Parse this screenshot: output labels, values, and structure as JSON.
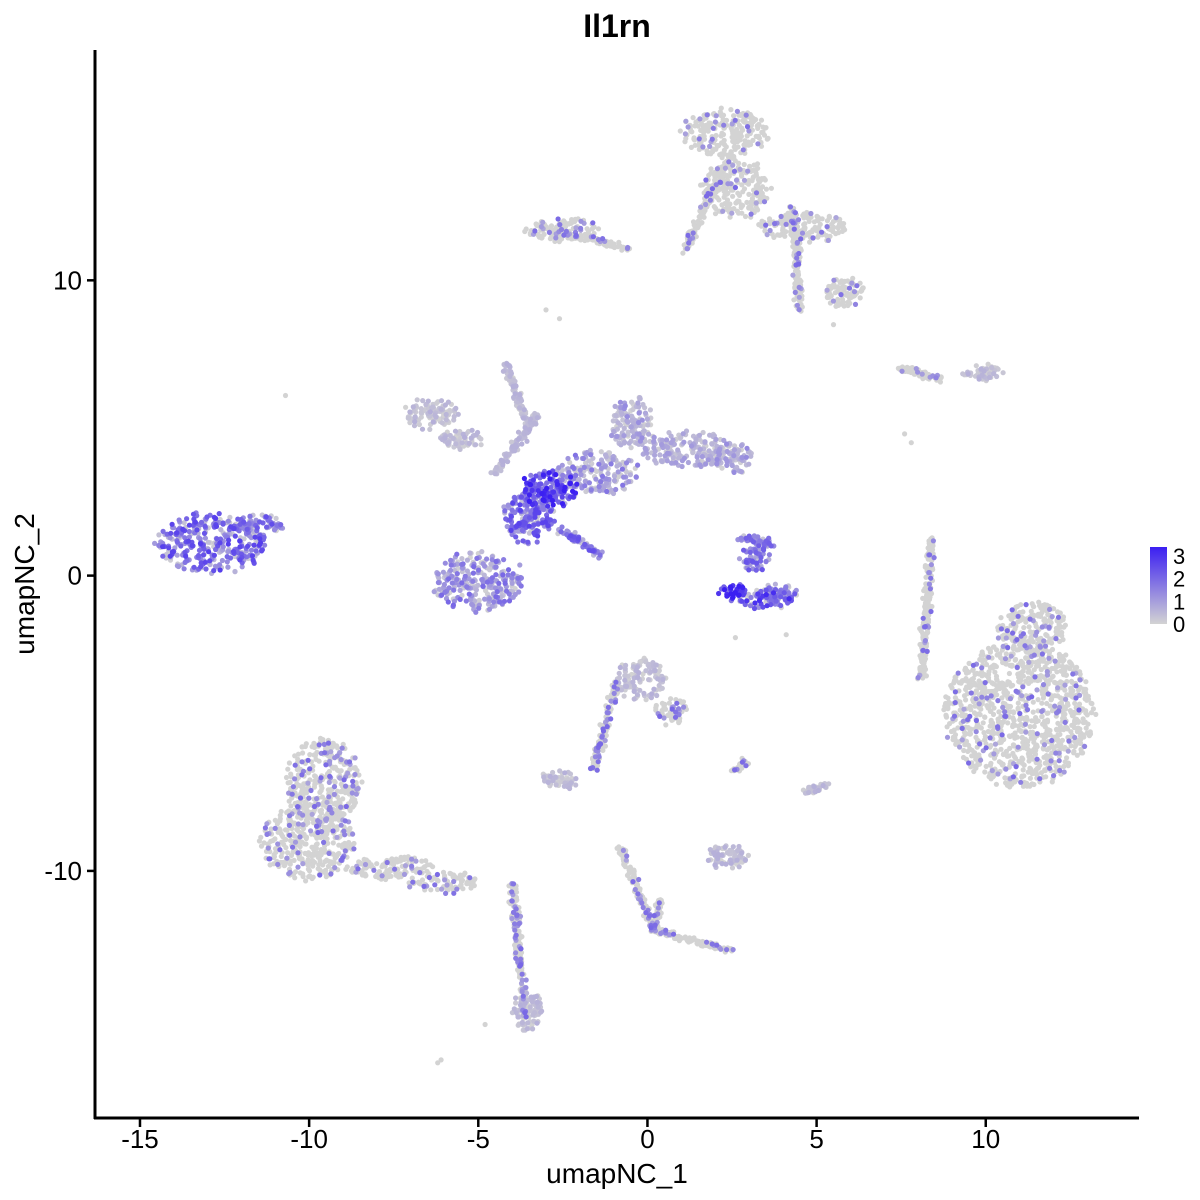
{
  "chart_data": {
    "type": "scatter",
    "title": "Il1rn",
    "xlabel": "umapNC_1",
    "ylabel": "umapNC_2",
    "xlim": [
      -16.3,
      14.5
    ],
    "ylim": [
      -18.3,
      17.8
    ],
    "x_ticks": [
      -15,
      -10,
      -5,
      0,
      5,
      10
    ],
    "x_tick_labels": [
      "-15",
      "-10",
      "-5",
      "0",
      "5",
      "10"
    ],
    "y_ticks": [
      -10,
      0,
      10
    ],
    "y_tick_labels": [
      "-10",
      "0",
      "10"
    ],
    "grid": false,
    "legend": {
      "position": "right",
      "type": "colorbar",
      "labels": [
        "3",
        "2",
        "1",
        "0"
      ],
      "values": [
        3,
        2,
        1,
        0
      ],
      "low_color": "#d3d3d3",
      "high_color": "#3b1ff2"
    },
    "clusters": [
      {
        "cx": 11.0,
        "cy": -4.7,
        "rx": 2.2,
        "ry": 2.5,
        "expr": 0.02
      },
      {
        "cx": 11.4,
        "cy": -1.8,
        "rx": 1.0,
        "ry": 0.9,
        "expr": 0.02
      },
      {
        "cx": -10.0,
        "cy": -9.0,
        "rx": 1.4,
        "ry": 1.3,
        "expr": 0.03
      },
      {
        "cx": -9.6,
        "cy": -7.0,
        "rx": 1.1,
        "ry": 1.5,
        "expr": 0.03
      },
      {
        "cx": -7.6,
        "cy": -9.9,
        "rx": 1.3,
        "ry": 0.4,
        "expr": 0.02
      },
      {
        "cx": -6.0,
        "cy": -10.4,
        "rx": 1.0,
        "ry": 0.3,
        "expr": 0.02
      },
      {
        "cx": -3.6,
        "cy": -14.7,
        "rx": 0.45,
        "ry": 0.7,
        "expr": 0.15
      },
      {
        "cx": 2.3,
        "cy": 15.0,
        "rx": 1.3,
        "ry": 0.8,
        "expr": 0.02
      },
      {
        "cx": 2.6,
        "cy": 13.1,
        "rx": 1.0,
        "ry": 1.0,
        "expr": 0.02
      },
      {
        "cx": 4.6,
        "cy": 11.8,
        "rx": 1.3,
        "ry": 0.5,
        "expr": 0.02
      },
      {
        "cx": 5.8,
        "cy": 9.6,
        "rx": 0.6,
        "ry": 0.5,
        "expr": 0.02
      },
      {
        "cx": -2.5,
        "cy": 11.7,
        "rx": 1.1,
        "ry": 0.4,
        "expr": 0.03
      },
      {
        "cx": -0.2,
        "cy": -3.5,
        "rx": 0.7,
        "ry": 0.7,
        "expr": 0.05
      },
      {
        "cx": 0.7,
        "cy": -4.6,
        "rx": 0.5,
        "ry": 0.4,
        "expr": 0.04
      },
      {
        "cx": -2.6,
        "cy": -6.9,
        "rx": 0.5,
        "ry": 0.3,
        "expr": 0.05
      },
      {
        "cx": 2.4,
        "cy": -9.5,
        "rx": 0.6,
        "ry": 0.4,
        "expr": 0.15
      },
      {
        "cx": 9.9,
        "cy": 6.9,
        "rx": 0.6,
        "ry": 0.25,
        "expr": 0.05
      },
      {
        "cx": -12.9,
        "cy": 1.1,
        "rx": 1.6,
        "ry": 1.0,
        "expr": 0.62
      },
      {
        "cx": -11.5,
        "cy": 1.7,
        "rx": 0.7,
        "ry": 0.35,
        "expr": 0.55
      },
      {
        "cx": -5.0,
        "cy": -0.2,
        "rx": 1.3,
        "ry": 1.0,
        "expr": 0.45
      },
      {
        "cx": -3.5,
        "cy": 2.0,
        "rx": 0.7,
        "ry": 0.9,
        "expr": 0.6
      },
      {
        "cx": -2.9,
        "cy": 2.9,
        "rx": 0.9,
        "ry": 0.6,
        "expr": 0.8
      },
      {
        "cx": -1.5,
        "cy": 3.5,
        "rx": 1.2,
        "ry": 0.7,
        "expr": 0.4
      },
      {
        "cx": -0.5,
        "cy": 5.2,
        "rx": 0.6,
        "ry": 0.9,
        "expr": 0.3
      },
      {
        "cx": 1.2,
        "cy": 4.3,
        "rx": 1.4,
        "ry": 0.6,
        "expr": 0.25
      },
      {
        "cx": 2.5,
        "cy": 4.0,
        "rx": 0.6,
        "ry": 0.5,
        "expr": 0.3
      },
      {
        "cx": -6.4,
        "cy": 5.5,
        "rx": 0.8,
        "ry": 0.5,
        "expr": 0.05
      },
      {
        "cx": -5.5,
        "cy": 4.6,
        "rx": 0.7,
        "ry": 0.3,
        "expr": 0.05
      },
      {
        "cx": 3.4,
        "cy": -0.8,
        "rx": 0.9,
        "ry": 0.3,
        "expr": 0.7
      },
      {
        "cx": 2.5,
        "cy": -0.5,
        "rx": 0.4,
        "ry": 0.2,
        "expr": 0.95
      },
      {
        "cx": 3.2,
        "cy": 0.6,
        "rx": 0.4,
        "ry": 0.4,
        "expr": 0.55
      },
      {
        "cx": 3.8,
        "cy": -0.6,
        "rx": 0.6,
        "ry": 0.3,
        "expr": 0.5
      }
    ],
    "segments": [
      {
        "x0": 8.1,
        "y0": -3.5,
        "x1": 8.4,
        "y1": 1.2,
        "expr": 0.02
      },
      {
        "x0": -4.0,
        "y0": -10.5,
        "x1": -3.6,
        "y1": -15.0,
        "expr": 0.03
      },
      {
        "x0": 2.3,
        "y0": 14.0,
        "x1": 1.1,
        "y1": 11.0,
        "expr": 0.02
      },
      {
        "x0": 4.3,
        "y0": 12.5,
        "x1": 4.5,
        "y1": 9.0,
        "expr": 0.02
      },
      {
        "x0": -0.9,
        "y0": -3.6,
        "x1": -1.6,
        "y1": -6.6,
        "expr": 0.03
      },
      {
        "x0": -0.8,
        "y0": -9.2,
        "x1": 0.2,
        "y1": -12.0,
        "expr": 0.03
      },
      {
        "x0": 0.2,
        "y0": -12.0,
        "x1": 2.5,
        "y1": -12.7,
        "expr": 0.03
      },
      {
        "x0": 0.2,
        "y0": -12.0,
        "x1": 0.4,
        "y1": -11.0,
        "expr": 0.03
      },
      {
        "x0": 7.5,
        "y0": 7.0,
        "x1": 8.7,
        "y1": 6.7,
        "expr": 0.03
      },
      {
        "x0": -4.2,
        "y0": 7.2,
        "x1": -3.5,
        "y1": 5.0,
        "expr": 0.1
      },
      {
        "x0": -4.5,
        "y0": 3.5,
        "x1": -3.2,
        "y1": 5.5,
        "expr": 0.15
      },
      {
        "x0": -2.6,
        "y0": 1.6,
        "x1": -1.4,
        "y1": 0.7,
        "expr": 0.55
      },
      {
        "x0": -4.0,
        "y0": 1.5,
        "x1": -2.5,
        "y1": 3.0,
        "expr": 0.6
      },
      {
        "x0": -2.9,
        "y0": 11.7,
        "x1": -0.6,
        "y1": 11.1,
        "expr": 0.03
      },
      {
        "x0": 2.6,
        "y0": -6.6,
        "x1": 2.9,
        "y1": -6.3,
        "expr": 0.03
      },
      {
        "x0": 2.8,
        "y0": 1.3,
        "x1": 3.7,
        "y1": 1.1,
        "expr": 0.5
      },
      {
        "x0": 4.7,
        "y0": -7.3,
        "x1": 5.3,
        "y1": -7.1,
        "expr": 0.05
      }
    ],
    "outliers": [
      {
        "x": -10.7,
        "y": 6.1
      },
      {
        "x": -3.0,
        "y": 9.0
      },
      {
        "x": -2.6,
        "y": 8.7
      },
      {
        "x": 5.5,
        "y": 8.5
      },
      {
        "x": 2.6,
        "y": -2.1
      },
      {
        "x": -4.8,
        "y": -15.2
      },
      {
        "x": -6.1,
        "y": -16.4
      },
      {
        "x": -6.2,
        "y": -16.5
      },
      {
        "x": 7.6,
        "y": 4.8
      },
      {
        "x": 7.8,
        "y": 4.5
      },
      {
        "x": 4.1,
        "y": -2.0
      }
    ]
  }
}
